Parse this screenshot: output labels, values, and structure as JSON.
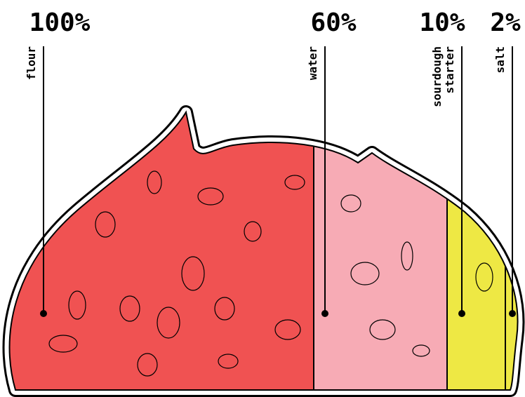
{
  "items": [
    {
      "percent": "100%",
      "label": [
        "flour"
      ],
      "color": "#f05252"
    },
    {
      "percent": "60%",
      "label": [
        "water"
      ],
      "color": "#f7abb5"
    },
    {
      "percent": "10%",
      "label": [
        "sourdough",
        "starter"
      ],
      "color": "#eee844"
    },
    {
      "percent": "2%",
      "label": [
        "salt"
      ],
      "color": "#eee844"
    }
  ]
}
